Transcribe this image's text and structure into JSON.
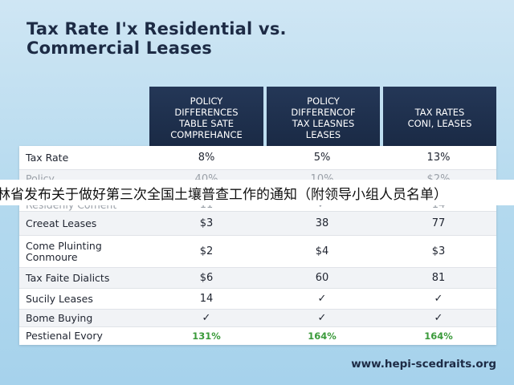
{
  "title": {
    "line1": "Tax Rate I'x Residential vs.",
    "line2": "Commercial Leases"
  },
  "headers": [
    "POLICY\nDIFFERENCES\nTABLE SATE\nCOMPREHANCE",
    "POLICY\nDIFFERENCOF\nTAX LEASNES\nLEASES",
    "TAX RATES\nCONI, LEASES"
  ],
  "rows": [
    {
      "label": "Tax Rate",
      "values": [
        "8%",
        "5%",
        "13%"
      ]
    },
    {
      "label": "Policy",
      "values": [
        "40%",
        "10%",
        "$2%"
      ]
    },
    {
      "label": "Residenly Coment",
      "values": [
        "11",
        "✓",
        "14"
      ]
    },
    {
      "label": "Creeat Leases",
      "values": [
        "$3",
        "38",
        "77"
      ]
    },
    {
      "label": "Come Pluinting\nConmoure",
      "values": [
        "$2",
        "$4",
        "$3"
      ]
    },
    {
      "label": "Tax Faite Dialicts",
      "values": [
        "$6",
        "60",
        "81"
      ]
    },
    {
      "label": "Sucily Leases",
      "values": [
        "14",
        "✓",
        "✓"
      ]
    },
    {
      "label": "Bome Buying",
      "values": [
        "✓",
        "✓",
        "✓"
      ]
    },
    {
      "label": "Pestienal Evory",
      "values": [
        "131%",
        "164%",
        "164%"
      ]
    }
  ],
  "banner_text": "林省发布关于做好第三次全国土壤普查工作的通知（附领导小组人员名单）",
  "footer_url": "www.hepi-scedraits.org",
  "colors": {
    "header_bg": "#1f3050",
    "title": "#1d2b45",
    "green_value": "#3a9a3a"
  }
}
